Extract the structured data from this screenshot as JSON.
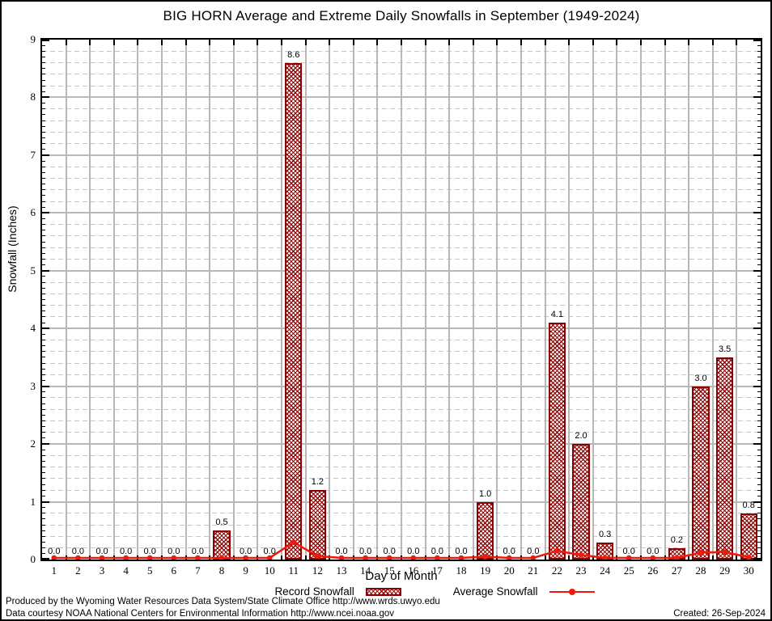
{
  "page": {
    "title": "BIG HORN Average and Extreme Daily Snowfalls in September (1949-2024)",
    "footer": {
      "line1": "Produced by the Wyoming Water Resources Data System/State Climate Office http://www.wrds.uwyo.edu",
      "line2": "Data courtesy NOAA National Centers for Environmental Information http://www.ncei.noaa.gov",
      "created": "Created: 26-Sep-2024"
    }
  },
  "chart_data": {
    "type": "bar",
    "title": "BIG HORN Average and Extreme Daily Snowfalls in September (1949-2024)",
    "xlabel": "Day of Month",
    "ylabel": "Snowfall (Inches)",
    "ylim": [
      0,
      9
    ],
    "y_major_step": 1,
    "y_minor_step": 0.2,
    "y_ticks": [
      0,
      1,
      2,
      3,
      4,
      5,
      6,
      7,
      8,
      9
    ],
    "grid": true,
    "legend_position": "bottom",
    "categories": [
      1,
      2,
      3,
      4,
      5,
      6,
      7,
      8,
      9,
      10,
      11,
      12,
      13,
      14,
      15,
      16,
      17,
      18,
      19,
      20,
      21,
      22,
      23,
      24,
      25,
      26,
      27,
      28,
      29,
      30
    ],
    "series": [
      {
        "name": "Record Snowfall",
        "type": "bar",
        "values": [
          0.0,
          0.0,
          0.0,
          0.0,
          0.0,
          0.0,
          0.0,
          0.5,
          0.0,
          0.0,
          8.6,
          1.2,
          0.0,
          0.0,
          0.0,
          0.0,
          0.0,
          0.0,
          1.0,
          0.0,
          0.0,
          4.1,
          2.0,
          0.3,
          0.0,
          0.0,
          0.2,
          3.0,
          3.5,
          0.8
        ],
        "value_labels": [
          "0.0",
          "0.0",
          "0.0",
          "0.0",
          "0.0",
          "0.0",
          "0.0",
          "0.5",
          "0.0",
          "0.0",
          "8.6",
          "1.2",
          "0.0",
          "0.0",
          "0.0",
          "0.0",
          "0.0",
          "0.0",
          "1.0",
          "0.0",
          "0.0",
          "4.1",
          "2.0",
          "0.3",
          "0.0",
          "0.0",
          "0.2",
          "3.0",
          "3.5",
          "0.8"
        ]
      },
      {
        "name": "Average Snowfall",
        "type": "line",
        "values": [
          0,
          0,
          0,
          0,
          0,
          0,
          0,
          0.01,
          0,
          0,
          0.3,
          0.06,
          0,
          0,
          0,
          0,
          0,
          0.01,
          0.05,
          0.01,
          0.02,
          0.15,
          0.08,
          0.03,
          0,
          0,
          0.03,
          0.12,
          0.13,
          0.04
        ]
      }
    ],
    "colors": {
      "bar_border": "#8b0000",
      "bar_hatch": "#8b0000",
      "line": "#ee1a0c",
      "marker": "#ee1a0c",
      "grid_major": "#b8b8b8",
      "grid_minor": "#c6c6c6",
      "axis": "#000000",
      "text": "#000000"
    }
  }
}
